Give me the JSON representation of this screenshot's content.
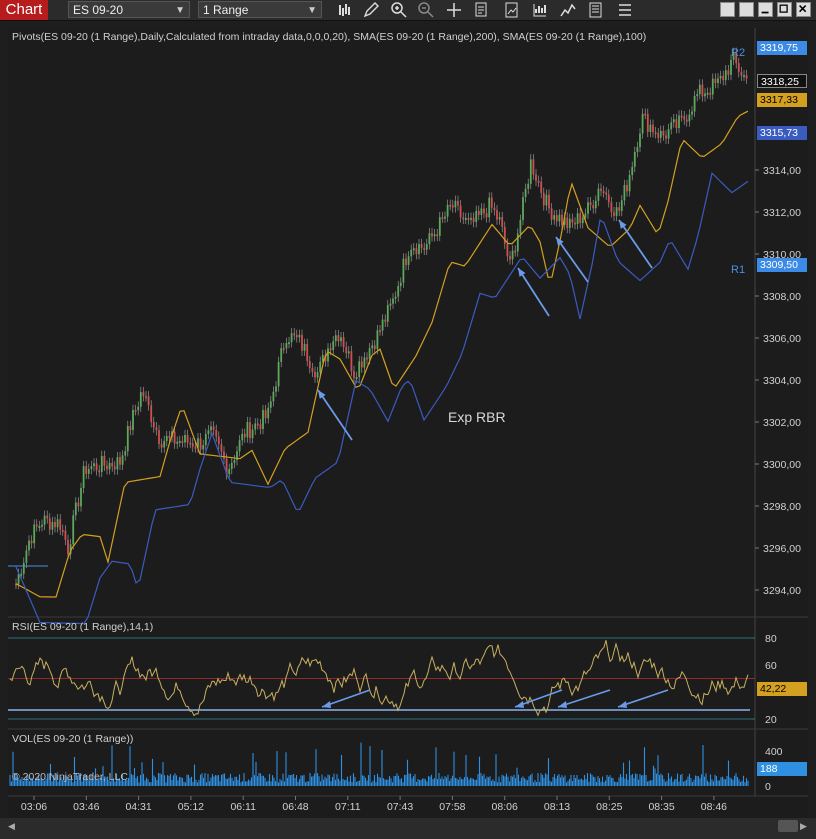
{
  "toolbar": {
    "title": "Chart",
    "instrument": "ES 09-20",
    "interval": "1 Range",
    "icons": [
      "bar-type-icon",
      "draw-pencil-icon",
      "zoom-in-icon",
      "zoom-out-icon",
      "crosshair-icon",
      "properties-icon",
      "templates-icon",
      "indicators-icon",
      "strategies-icon",
      "data-box-icon",
      "menu-icon"
    ]
  },
  "window": {
    "buttons": [
      "blank-button",
      "blank-button-2",
      "minimize-button",
      "maximize-button",
      "close-button"
    ]
  },
  "price_panel": {
    "label": "Pivots(ES 09-20 (1 Range),Daily,Calculated from intraday data,0,0,0,20), SMA(ES 09-20 (1 Range),200), SMA(ES 09-20 (1 Range),100)",
    "y_ticks": [
      "3294,00",
      "3296,00",
      "3298,00",
      "3300,00",
      "3302,00",
      "3304,00",
      "3306,00",
      "3308,00",
      "3310,00",
      "3312,00",
      "3314,00"
    ],
    "annotation": "Exp RBR",
    "tags": {
      "r2": "3319,75",
      "last": "3318,25",
      "sma100": "3317,33",
      "sma200": "3315,73",
      "r1": "3309,50",
      "r2_label": "R2",
      "r1_label": "R1"
    },
    "colors": {
      "up": "#5aaa5a",
      "down": "#d05050",
      "sma100": "#d4a020",
      "sma200": "#3a5cc0",
      "pivot": "#4a90e2",
      "arrow": "#6a9ae8"
    }
  },
  "rsi_panel": {
    "label": "RSI(ES 09-20 (1 Range),14,1)",
    "y_ticks": [
      "80",
      "60",
      "20"
    ],
    "value": "42,22",
    "line_color": "#c8b060"
  },
  "volume_panel": {
    "label": "VOL(ES 09-20 (1 Range))",
    "y_ticks": [
      "400",
      "0"
    ],
    "value": "188",
    "copyright": "© 2020 NinjaTrader, LLC",
    "bar_color": "#2f8fe0"
  },
  "x_axis": [
    "03:06",
    "03:46",
    "04:31",
    "05:12",
    "06:11",
    "06:48",
    "07:11",
    "07:43",
    "07:58",
    "08:06",
    "08:13",
    "08:25",
    "08:35",
    "08:46"
  ]
}
